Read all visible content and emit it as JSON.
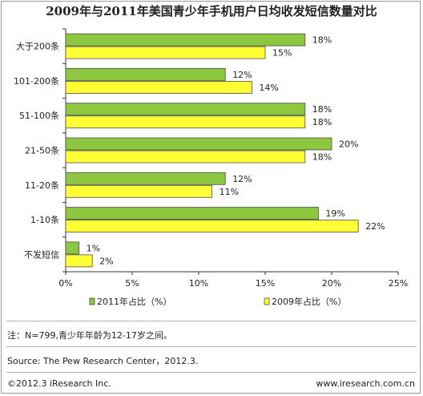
{
  "title": "2009年与2011年美国青少年手机用户日均收发短信数量对比",
  "note": "注：N=799,青少年年龄为12-17岁之间。",
  "source": "Source: The Pew Research Center，2012.3.",
  "footer": {
    "left": "©2012.3 iResearch Inc.",
    "right": "www.iresearch.com.cn"
  },
  "chart_data": {
    "type": "bar",
    "orientation": "horizontal",
    "categories": [
      "大于200条",
      "101-200条",
      "51-100条",
      "21-50条",
      "11-20条",
      "1-10条",
      "不发短信"
    ],
    "series": [
      {
        "name": "2011年占比（%）",
        "color": "#8dc63f",
        "values": [
          18,
          12,
          18,
          20,
          12,
          19,
          1
        ]
      },
      {
        "name": "2009年占比（%）",
        "color": "#ffff33",
        "values": [
          15,
          14,
          18,
          18,
          11,
          22,
          2
        ]
      }
    ],
    "value_format": "%",
    "xlim": [
      0,
      25
    ],
    "xticks": [
      0,
      5,
      10,
      15,
      20,
      25
    ],
    "xtick_labels": [
      "0%",
      "5%",
      "10%",
      "15%",
      "20%",
      "25%"
    ],
    "grid": false,
    "legend_position": "bottom"
  }
}
